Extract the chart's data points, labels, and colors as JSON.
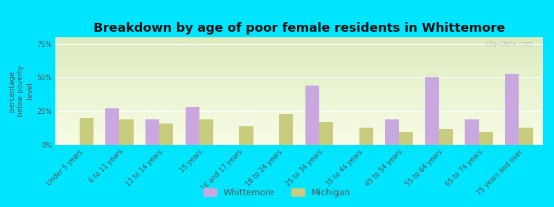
{
  "categories": [
    "Under 5 years",
    "6 to 11 years",
    "12 to 14 years",
    "15 years",
    "16 and 17 years",
    "18 to 24 years",
    "25 to 34 years",
    "35 to 44 years",
    "45 to 54 years",
    "55 to 64 years",
    "65 to 74 years",
    "75 years and over"
  ],
  "whittemore": [
    0,
    27,
    19,
    28,
    0,
    0,
    44,
    0,
    19,
    50,
    19,
    53
  ],
  "michigan": [
    20,
    19,
    16,
    19,
    14,
    23,
    17,
    13,
    10,
    12,
    10,
    13
  ],
  "whittemore_color": "#c9a8e0",
  "michigan_color": "#c8cc7e",
  "title": "Breakdown by age of poor female residents in Whittemore",
  "ylabel": "percentage\nbelow poverty\nlevel",
  "ylim": [
    0,
    80
  ],
  "yticks": [
    0,
    25,
    50,
    75
  ],
  "ytick_labels": [
    "0%",
    "25%",
    "50%",
    "75%"
  ],
  "bg_outer": "#00e5ff",
  "bar_width": 0.35,
  "title_fontsize": 13,
  "label_fontsize": 7.0,
  "ylabel_fontsize": 7.5,
  "legend_whittemore": "Whittemore",
  "legend_michigan": "Michigan"
}
